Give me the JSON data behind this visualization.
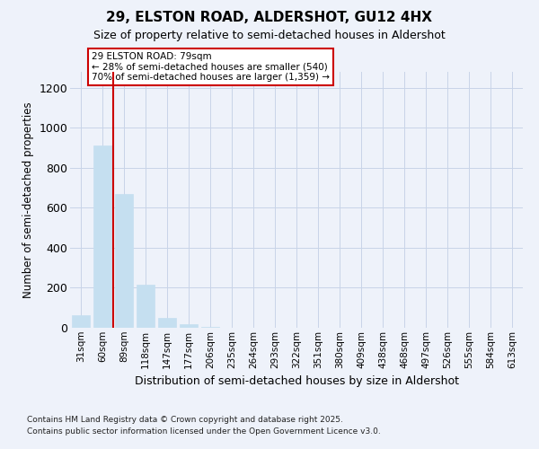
{
  "title1": "29, ELSTON ROAD, ALDERSHOT, GU12 4HX",
  "title2": "Size of property relative to semi-detached houses in Aldershot",
  "xlabel": "Distribution of semi-detached houses by size in Aldershot",
  "ylabel": "Number of semi-detached properties",
  "bins": [
    "31sqm",
    "60sqm",
    "89sqm",
    "118sqm",
    "147sqm",
    "177sqm",
    "206sqm",
    "235sqm",
    "264sqm",
    "293sqm",
    "322sqm",
    "351sqm",
    "380sqm",
    "409sqm",
    "438sqm",
    "468sqm",
    "497sqm",
    "526sqm",
    "555sqm",
    "584sqm",
    "613sqm"
  ],
  "values": [
    65,
    910,
    670,
    215,
    50,
    20,
    5,
    2,
    2,
    1,
    0,
    0,
    0,
    0,
    0,
    0,
    0,
    0,
    0,
    0,
    0
  ],
  "bar_color": "#c5dff0",
  "bar_edge_color": "#c5dff0",
  "grid_color": "#c8d4e8",
  "background_color": "#eef2fa",
  "vline_color": "#cc0000",
  "annotation_line1": "29 ELSTON ROAD: 79sqm",
  "annotation_line2": "← 28% of semi-detached houses are smaller (540)",
  "annotation_line3": "70% of semi-detached houses are larger (1,359) →",
  "annotation_box_color": "#ffffff",
  "annotation_box_edgecolor": "#cc0000",
  "footnote1": "Contains HM Land Registry data © Crown copyright and database right 2025.",
  "footnote2": "Contains public sector information licensed under the Open Government Licence v3.0.",
  "ylim": [
    0,
    1280
  ],
  "yticks": [
    0,
    200,
    400,
    600,
    800,
    1000,
    1200
  ]
}
